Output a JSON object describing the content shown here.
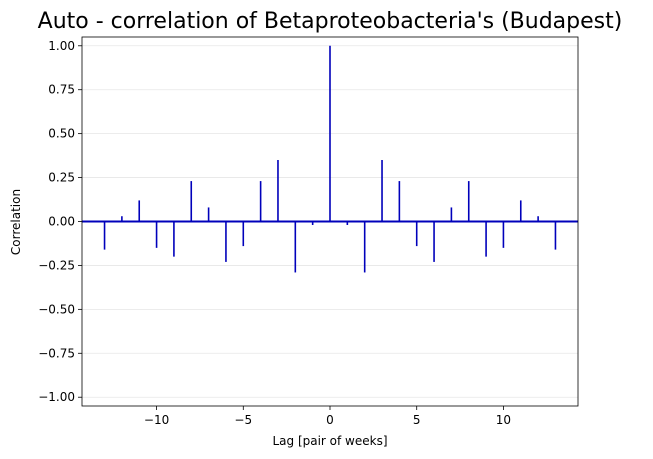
{
  "chart_data": {
    "type": "bar",
    "title": "Auto - correlation of Betaproteobacteria's (Budapest)",
    "xlabel": "Lag [pair of weeks]",
    "ylabel": "Correlation",
    "xlim": [
      -14.3,
      14.3
    ],
    "ylim": [
      -1.05,
      1.05
    ],
    "xticks": [
      -10,
      -5,
      0,
      5,
      10
    ],
    "xtick_labels": [
      "−10",
      "−5",
      "0",
      "5",
      "10"
    ],
    "yticks": [
      -1.0,
      -0.75,
      -0.5,
      -0.25,
      0.0,
      0.25,
      0.5,
      0.75,
      1.0
    ],
    "ytick_labels": [
      "−1.00",
      "−0.75",
      "−0.50",
      "−0.25",
      "0.00",
      "0.25",
      "0.50",
      "0.75",
      "1.00"
    ],
    "grid": "horizontal",
    "baseline": 0,
    "color": "#0000bb",
    "lags": [
      -13,
      -12,
      -11,
      -10,
      -9,
      -8,
      -7,
      -6,
      -5,
      -4,
      -3,
      -2,
      -1,
      0,
      1,
      2,
      3,
      4,
      5,
      6,
      7,
      8,
      9,
      10,
      11,
      12,
      13
    ],
    "values": [
      -0.16,
      0.03,
      0.12,
      -0.15,
      -0.2,
      0.23,
      0.08,
      -0.23,
      -0.14,
      0.23,
      0.35,
      -0.29,
      -0.02,
      1.0,
      -0.02,
      -0.29,
      0.35,
      0.23,
      -0.14,
      -0.23,
      0.08,
      0.23,
      -0.2,
      -0.15,
      0.12,
      0.03,
      -0.16
    ]
  }
}
